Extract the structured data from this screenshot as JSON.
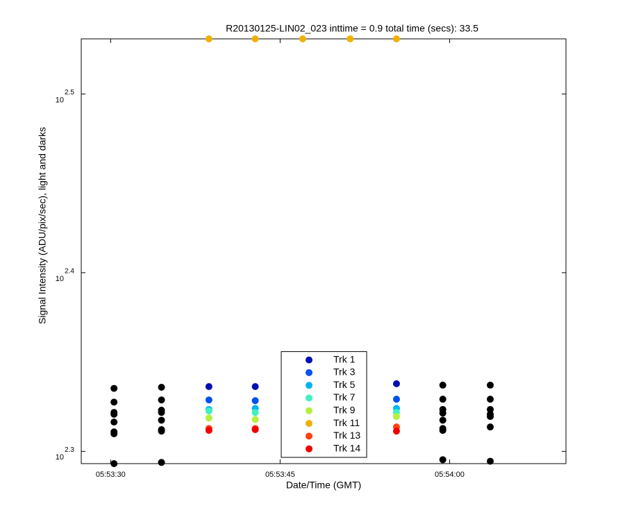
{
  "chart_data": {
    "type": "scatter",
    "title": "R20130125-LIN02_023 inttime = 0.9 total time (secs): 33.5",
    "x_label": "Date/Time (GMT)",
    "y_label": "Signal Intensity (ADU/pix/sec), light and darks",
    "yscale": "log",
    "xlim": [
      "05:53:27.4",
      "05:54:10.3"
    ],
    "xticks": [
      "05:53:30",
      "05:53:45",
      "05:54:00"
    ],
    "ylim": [
      196.4,
      339.5
    ],
    "yticks": [
      {
        "value": 199.526,
        "label": "10",
        "exponent": "2.3"
      },
      {
        "value": 251.189,
        "label": "10",
        "exponent": "2.4"
      },
      {
        "value": 316.228,
        "label": "10",
        "exponent": "2.5"
      }
    ],
    "legend": "lower center",
    "x": [
      "05:53:38.7",
      "05:53:42.8",
      "05:53:47.0",
      "05:53:51.2",
      "05:53:55.3"
    ],
    "series": [
      {
        "name": "Trk 1",
        "color": "#0010b0",
        "values": [
          216.9,
          216.9,
          null,
          null,
          217.7
        ]
      },
      {
        "name": "Trk 3",
        "color": "#0050f0",
        "values": [
          213.2,
          213.0,
          null,
          null,
          213.4
        ]
      },
      {
        "name": "Trk 5",
        "color": "#00b4f0",
        "values": [
          210.6,
          210.9,
          null,
          null,
          210.9
        ]
      },
      {
        "name": "Trk 7",
        "color": "#40f0c0",
        "values": [
          210.2,
          209.8,
          null,
          null,
          209.8
        ]
      },
      {
        "name": "Trk 9",
        "color": "#b4f040",
        "values": [
          208.3,
          207.9,
          null,
          null,
          208.7
        ]
      },
      {
        "name": "Trk 11",
        "color": "#f0b000",
        "values": [
          339.5,
          339.5,
          339.5,
          339.5,
          339.5
        ]
      },
      {
        "name": "Trk 13",
        "color": "#ff4010",
        "values": [
          205.5,
          205.5,
          null,
          null,
          205.9
        ]
      },
      {
        "name": "Trk 14",
        "color": "#f00000",
        "values": [
          205.0,
          205.2,
          null,
          null,
          204.8
        ]
      }
    ],
    "darks": {
      "color": "#000000",
      "x": [
        "05:53:30.3",
        "05:53:30.3",
        "05:53:30.3",
        "05:53:30.3",
        "05:53:30.3",
        "05:53:30.3",
        "05:53:30.3",
        "05:53:30.3",
        "05:53:34.5",
        "05:53:34.5",
        "05:53:34.5",
        "05:53:34.5",
        "05:53:34.5",
        "05:53:34.5",
        "05:53:34.5",
        "05:53:34.5",
        "05:53:59.4",
        "05:53:59.4",
        "05:53:59.4",
        "05:53:59.4",
        "05:53:59.4",
        "05:53:59.4",
        "05:53:59.4",
        "05:53:59.4",
        "05:54:03.6",
        "05:54:03.6",
        "05:54:03.6",
        "05:54:03.6",
        "05:54:03.6",
        "05:54:03.6",
        "05:54:03.6"
      ],
      "values": [
        216.4,
        212.6,
        209.8,
        209.3,
        207.2,
        204.6,
        204.1,
        196.4,
        216.7,
        213.2,
        210.4,
        209.8,
        207.7,
        205.2,
        204.8,
        196.7,
        217.3,
        213.4,
        210.6,
        209.6,
        207.7,
        205.5,
        205.0,
        197.4,
        217.3,
        213.4,
        210.6,
        209.3,
        208.7,
        205.9,
        197.0
      ]
    }
  }
}
